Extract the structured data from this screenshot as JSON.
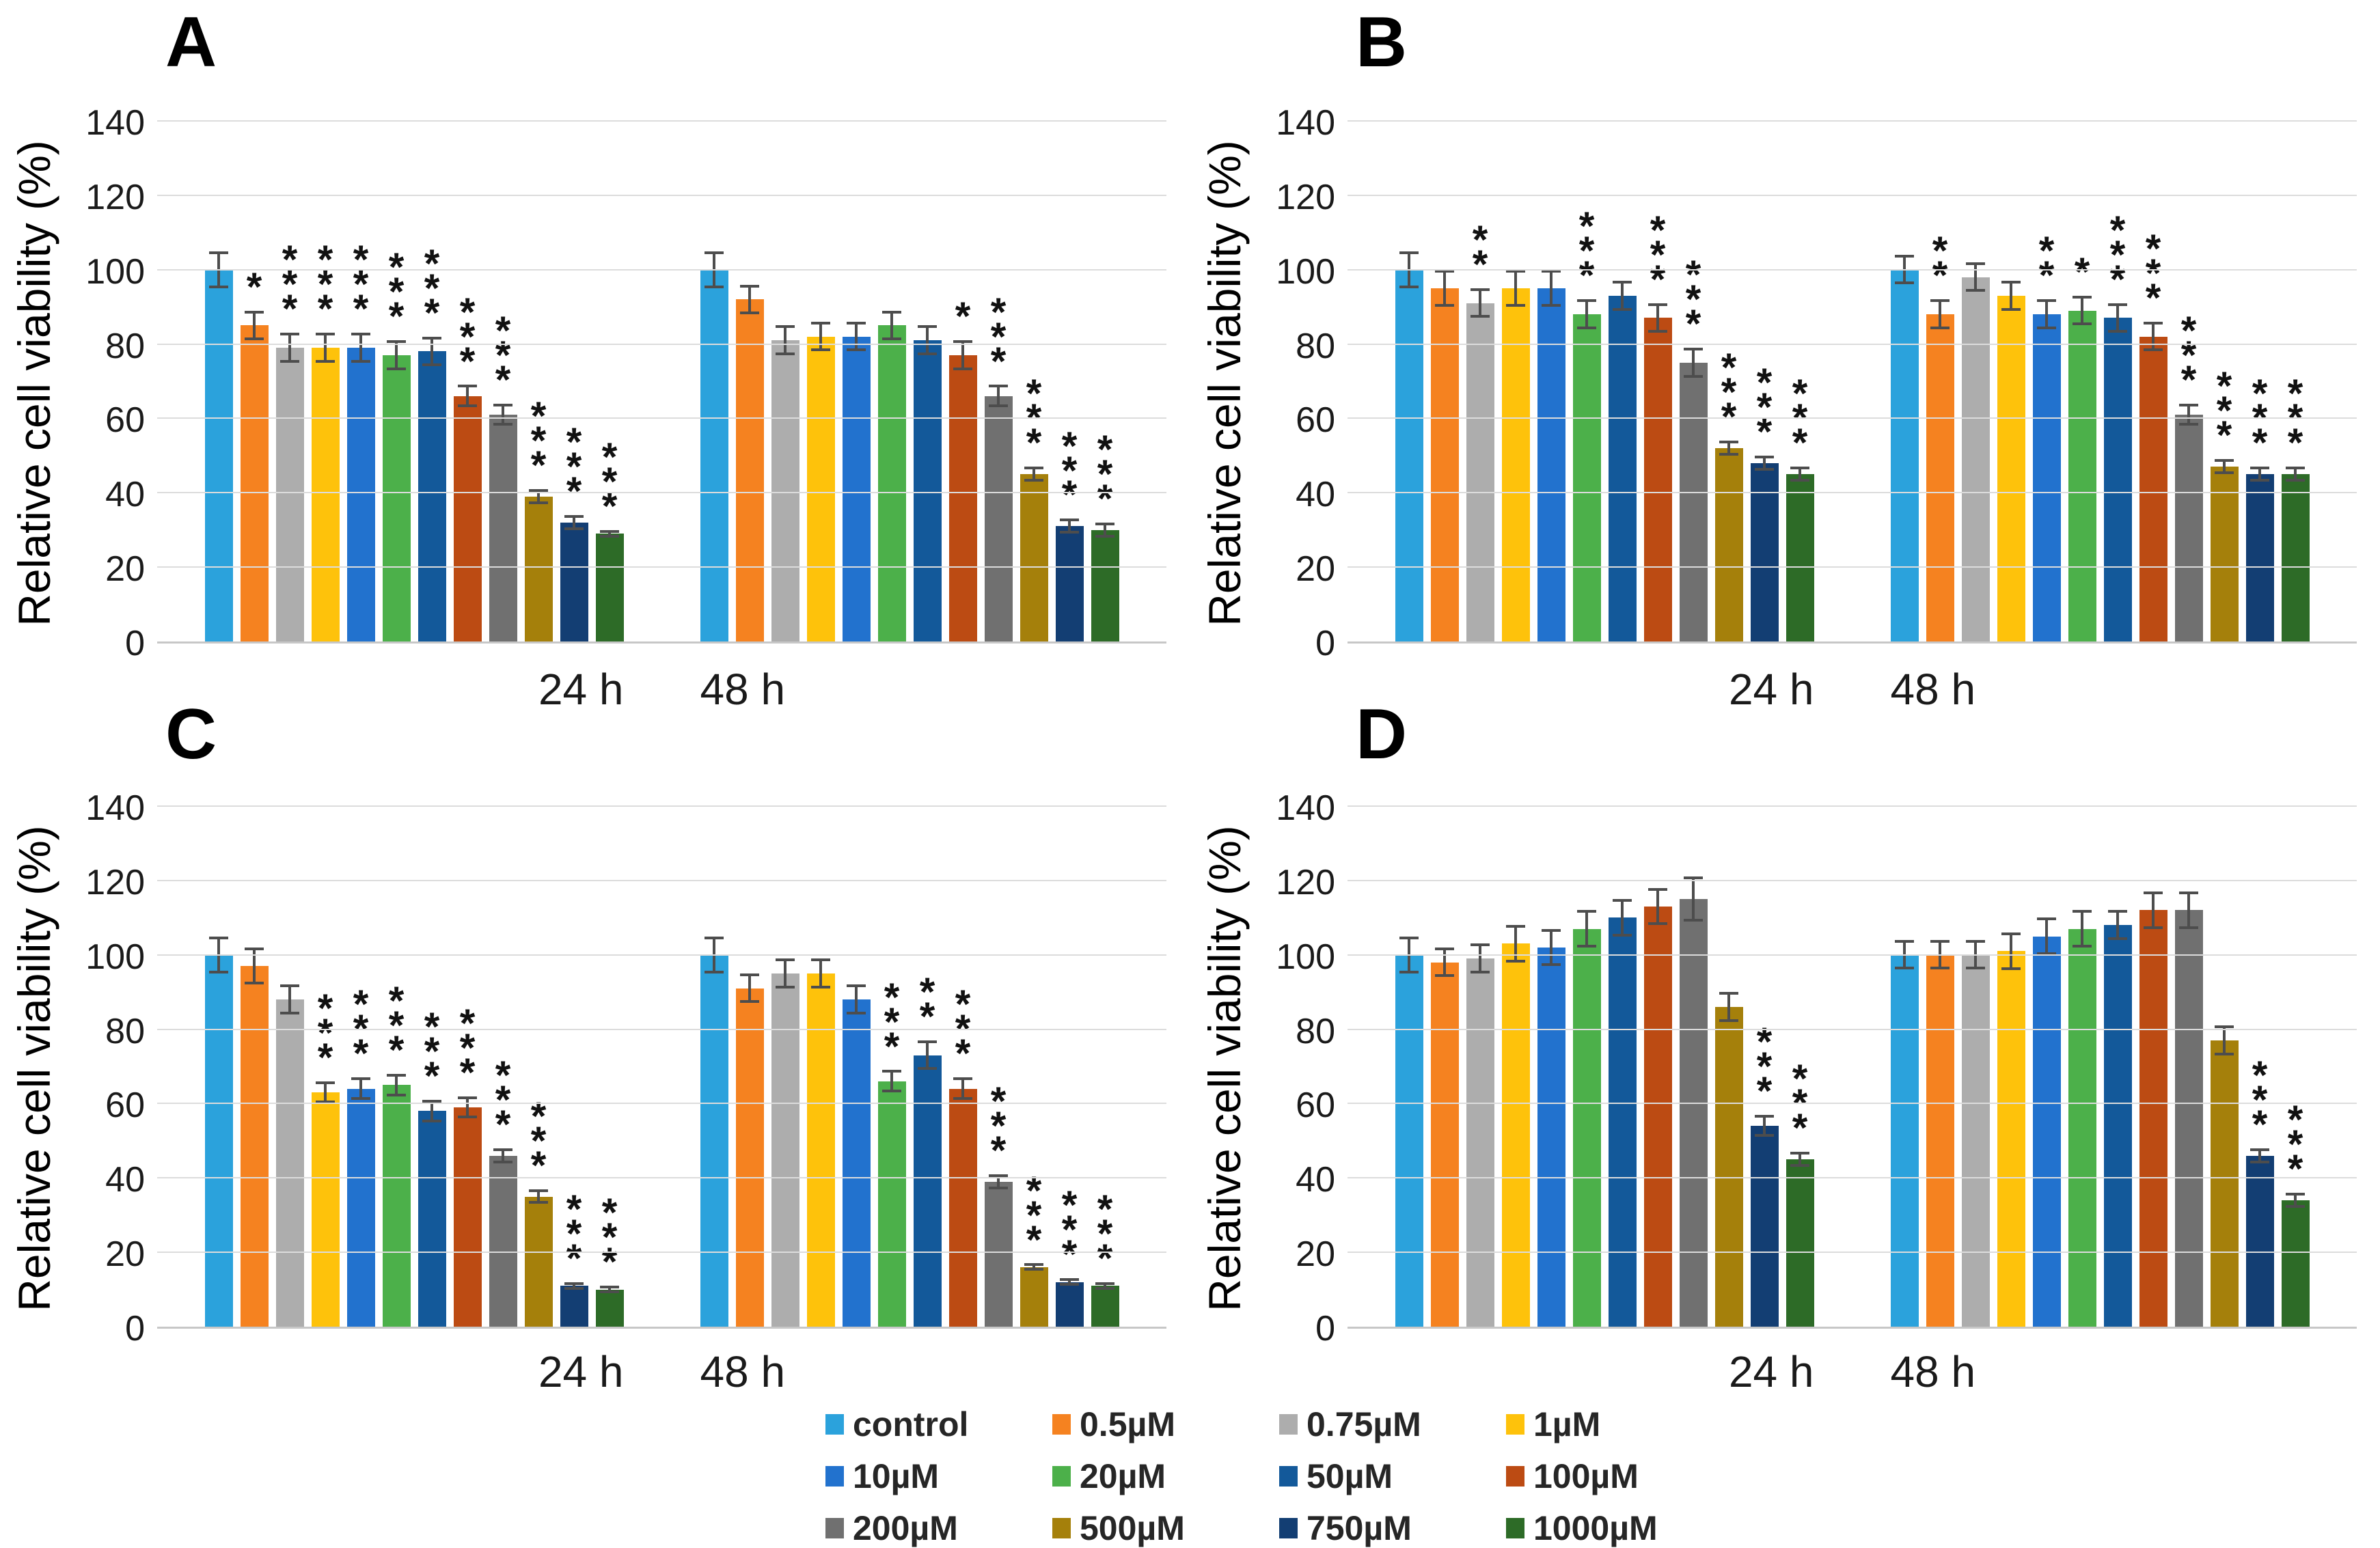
{
  "figure": {
    "y_axis_label": "Relative cell viability (%)",
    "group_labels": [
      "24 h",
      "48 h"
    ]
  },
  "legend": {
    "items": [
      {
        "label": "control",
        "color": "#2BA2DC"
      },
      {
        "label": "0.5µM",
        "color": "#F58220"
      },
      {
        "label": "0.75µM",
        "color": "#ADADAD"
      },
      {
        "label": "1µM",
        "color": "#FEC20B"
      },
      {
        "label": "10µM",
        "color": "#2272CE"
      },
      {
        "label": "20µM",
        "color": "#4CB04A"
      },
      {
        "label": "50µM",
        "color": "#13599A"
      },
      {
        "label": "100µM",
        "color": "#BC4B13"
      },
      {
        "label": "200µM",
        "color": "#707070"
      },
      {
        "label": "500µM",
        "color": "#A5800B"
      },
      {
        "label": "750µM",
        "color": "#133E73"
      },
      {
        "label": "1000µM",
        "color": "#2D6B27"
      }
    ]
  },
  "chart_data": [
    {
      "type": "bar",
      "panel_label": "A",
      "y_axis_label": "Relative cell viability (%)",
      "ylim": [
        0,
        140
      ],
      "ytick_step": 20,
      "grid": true,
      "categories": [
        "control",
        "0.5µM",
        "0.75µM",
        "1µM",
        "10µM",
        "20µM",
        "50µM",
        "100µM",
        "200µM",
        "500µM",
        "750µM",
        "1000µM"
      ],
      "groups": [
        {
          "label": "24 h",
          "values": [
            100,
            85,
            79,
            79,
            79,
            77,
            78,
            66,
            61,
            39,
            32,
            29
          ],
          "errors": [
            5,
            4,
            4,
            4,
            4,
            4,
            4,
            3,
            3,
            2,
            2,
            1
          ],
          "significance": [
            "",
            "*",
            "***",
            "***",
            "***",
            "***",
            "***",
            "***",
            "***",
            "***",
            "***",
            "***"
          ]
        },
        {
          "label": "48 h",
          "values": [
            100,
            92,
            81,
            82,
            82,
            85,
            81,
            77,
            66,
            45,
            31,
            30
          ],
          "errors": [
            5,
            4,
            4,
            4,
            4,
            4,
            4,
            4,
            3,
            2,
            2,
            2
          ],
          "significance": [
            "",
            "",
            "",
            "",
            "",
            "",
            "",
            "*",
            "***",
            "***",
            "***",
            "***"
          ]
        }
      ]
    },
    {
      "type": "bar",
      "panel_label": "B",
      "y_axis_label": "Relative cell viability (%)",
      "ylim": [
        0,
        140
      ],
      "ytick_step": 20,
      "grid": true,
      "categories": [
        "control",
        "0.5µM",
        "0.75µM",
        "1µM",
        "10µM",
        "20µM",
        "50µM",
        "100µM",
        "200µM",
        "500µM",
        "750µM",
        "1000µM"
      ],
      "groups": [
        {
          "label": "24 h",
          "values": [
            100,
            95,
            91,
            95,
            95,
            88,
            93,
            87,
            75,
            52,
            48,
            45
          ],
          "errors": [
            5,
            5,
            4,
            5,
            5,
            4,
            4,
            4,
            4,
            2,
            2,
            2
          ],
          "significance": [
            "",
            "",
            "**",
            "",
            "",
            "***",
            "",
            "***",
            "***",
            "***",
            "***",
            "***"
          ]
        },
        {
          "label": "48 h",
          "values": [
            100,
            88,
            98,
            93,
            88,
            89,
            87,
            82,
            61,
            47,
            45,
            45
          ],
          "errors": [
            4,
            4,
            4,
            4,
            4,
            4,
            4,
            4,
            3,
            2,
            2,
            2
          ],
          "significance": [
            "",
            "**",
            "",
            "",
            "**",
            "*",
            "***",
            "***",
            "***",
            "***",
            "***",
            "***"
          ]
        }
      ]
    },
    {
      "type": "bar",
      "panel_label": "C",
      "y_axis_label": "Relative cell viability (%)",
      "ylim": [
        0,
        140
      ],
      "ytick_step": 20,
      "grid": true,
      "categories": [
        "control",
        "0.5µM",
        "0.75µM",
        "1µM",
        "10µM",
        "20µM",
        "50µM",
        "100µM",
        "200µM",
        "500µM",
        "750µM",
        "1000µM"
      ],
      "groups": [
        {
          "label": "24 h",
          "values": [
            100,
            97,
            88,
            63,
            64,
            65,
            58,
            59,
            46,
            35,
            11,
            10
          ],
          "errors": [
            5,
            5,
            4,
            3,
            3,
            3,
            3,
            3,
            2,
            2,
            1,
            1
          ],
          "significance": [
            "",
            "",
            "",
            "***",
            "***",
            "***",
            "***",
            "***",
            "***",
            "***",
            "***",
            "***"
          ]
        },
        {
          "label": "48 h",
          "values": [
            100,
            91,
            95,
            95,
            88,
            66,
            73,
            64,
            39,
            16,
            12,
            11
          ],
          "errors": [
            5,
            4,
            4,
            4,
            4,
            3,
            4,
            3,
            2,
            1,
            1,
            1
          ],
          "significance": [
            "",
            "",
            "",
            "",
            "",
            "***",
            "**",
            "***",
            "***",
            "***",
            "***",
            "***"
          ]
        }
      ]
    },
    {
      "type": "bar",
      "panel_label": "D",
      "y_axis_label": "Relative cell viability (%)",
      "ylim": [
        0,
        140
      ],
      "ytick_step": 20,
      "grid": true,
      "categories": [
        "control",
        "0.5µM",
        "0.75µM",
        "1µM",
        "10µM",
        "20µM",
        "50µM",
        "100µM",
        "200µM",
        "500µM",
        "750µM",
        "1000µM"
      ],
      "groups": [
        {
          "label": "24 h",
          "values": [
            100,
            98,
            99,
            103,
            102,
            107,
            110,
            113,
            115,
            86,
            54,
            45
          ],
          "errors": [
            5,
            4,
            4,
            5,
            5,
            5,
            5,
            5,
            6,
            4,
            3,
            2
          ],
          "significance": [
            "",
            "",
            "",
            "",
            "",
            "",
            "",
            "",
            "",
            "",
            "***",
            "***"
          ]
        },
        {
          "label": "48 h",
          "values": [
            100,
            100,
            100,
            101,
            105,
            107,
            108,
            112,
            112,
            77,
            46,
            34
          ],
          "errors": [
            4,
            4,
            4,
            5,
            5,
            5,
            4,
            5,
            5,
            4,
            2,
            2
          ],
          "significance": [
            "",
            "",
            "",
            "",
            "",
            "",
            "",
            "",
            "",
            "",
            "***",
            "***"
          ]
        }
      ]
    }
  ]
}
